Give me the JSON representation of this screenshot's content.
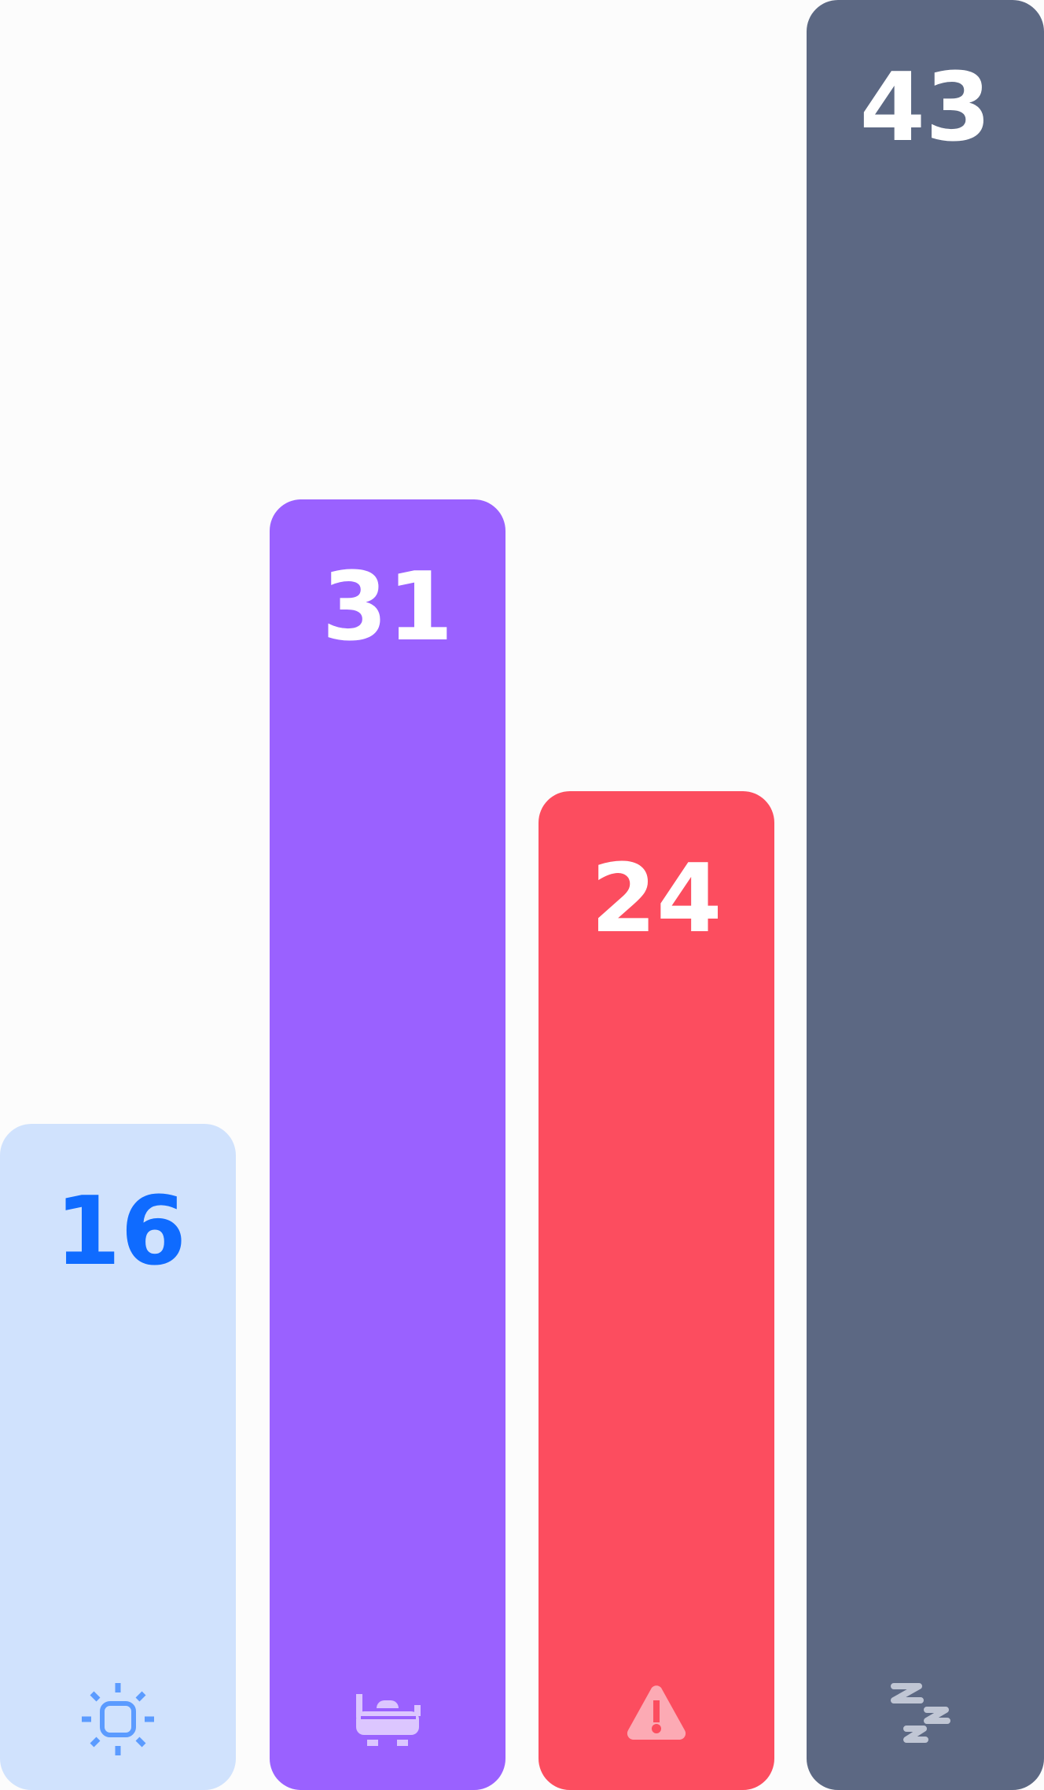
{
  "chart_data": {
    "type": "bar",
    "ylim": [
      0,
      43
    ],
    "bars": [
      {
        "value": 16,
        "label": "16",
        "color": "#d0e2fd",
        "text_color": "#0f6bff",
        "icon": "sun-icon"
      },
      {
        "value": 31,
        "label": "31",
        "color": "#9a61ff",
        "text_color": "#ffffff",
        "icon": "bathtub-icon"
      },
      {
        "value": 24,
        "label": "24",
        "color": "#fc4d5f",
        "text_color": "#ffffff",
        "icon": "warning-icon"
      },
      {
        "value": 43,
        "label": "43",
        "color": "#5c6883",
        "text_color": "#ffffff",
        "icon": "sleep-zzz-icon"
      }
    ]
  }
}
